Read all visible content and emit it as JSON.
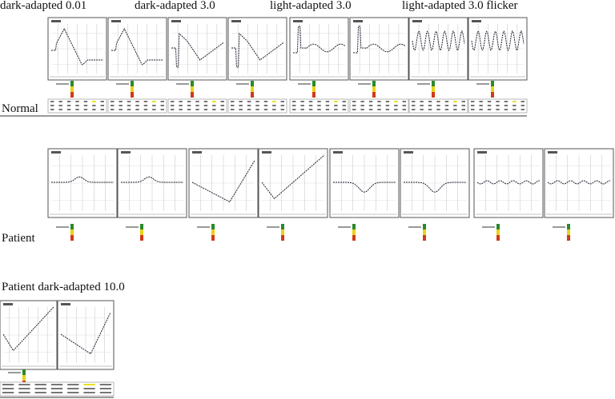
{
  "column_headings": [
    "dark-adapted 0.01",
    "dark-adapted 3.0",
    "light-adapted 3.0",
    "light-adapted 3.0 flicker"
  ],
  "row_labels": {
    "normal": "Normal",
    "patient": "Patient",
    "patient_da10": "Patient dark-adapted 10.0"
  }
}
